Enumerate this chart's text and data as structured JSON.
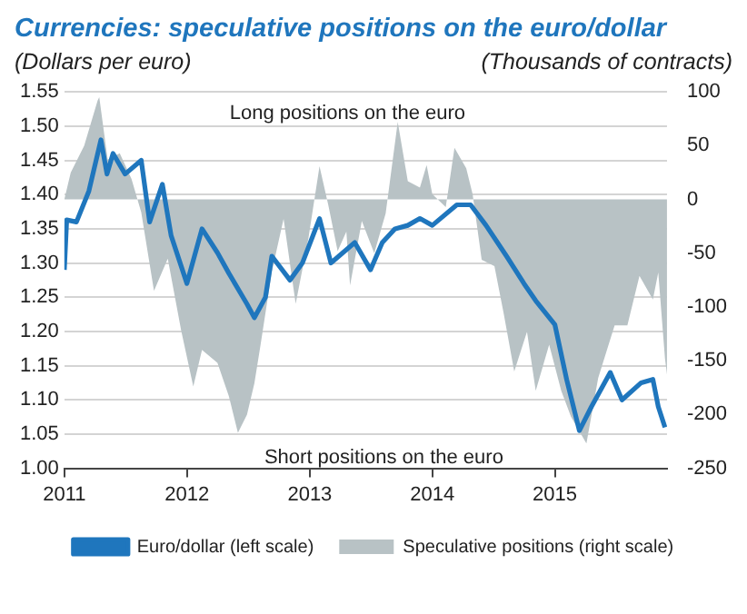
{
  "chart_data": {
    "type": "line",
    "title": "Currencies: speculative positions on the euro/dollar",
    "ylabel": "(Dollars per euro)",
    "y2label": "(Thousands of contracts)",
    "annotations": [
      "Long positions on the euro",
      "Short positions on the euro"
    ],
    "xlim": [
      "2011-01-01",
      "2015-12-01"
    ],
    "xticks": [
      {
        "value": "2011-01-01",
        "label": "2011"
      },
      {
        "value": "2012-01-01",
        "label": "2012"
      },
      {
        "value": "2013-01-01",
        "label": "2013"
      },
      {
        "value": "2014-01-01",
        "label": "2014"
      },
      {
        "value": "2015-01-01",
        "label": "2015"
      }
    ],
    "ylim": [
      1,
      1.55
    ],
    "yticks": [
      {
        "value": 1,
        "label": "1.00"
      },
      1.05,
      {
        "value": 1.1,
        "label": "1.10"
      },
      1.15,
      {
        "value": 1.2,
        "label": "1.20"
      },
      1.25,
      {
        "value": 1.3,
        "label": "1.30"
      },
      1.35,
      {
        "value": 1.4,
        "label": "1.40"
      },
      1.45,
      {
        "value": 1.5,
        "label": "1.50"
      },
      1.55
    ],
    "y2lim": [
      -250,
      100
    ],
    "y2ticks": [
      -250,
      -200,
      -150,
      -100,
      -50,
      0,
      50,
      100
    ],
    "grid": "y",
    "legend": "bottom",
    "marker": "none",
    "line_style": "solid",
    "series": [
      {
        "name": "Euro/dollar (left scale)",
        "type": "line",
        "color": "#1f76bd",
        "x": [
          "2011-01-01",
          "2011-01-08",
          "2011-02-06",
          "2011-03-15",
          "2011-04-20",
          "2011-05-08",
          "2011-05-26",
          "2011-07-01",
          "2011-08-18",
          "2011-09-12",
          "2011-10-20",
          "2011-11-15",
          "2012-01-01",
          "2012-02-15",
          "2012-04-01",
          "2012-05-05",
          "2012-06-28",
          "2012-07-20",
          "2012-08-22",
          "2012-09-10",
          "2012-11-03",
          "2012-12-10",
          "2013-01-30",
          "2013-03-05",
          "2013-05-15",
          "2013-07-01",
          "2013-08-05",
          "2013-09-12",
          "2013-10-20",
          "2013-11-25",
          "2014-01-01",
          "2014-03-15",
          "2014-04-25",
          "2014-06-10",
          "2014-08-10",
          "2014-10-01",
          "2014-11-05",
          "2015-01-01",
          "2015-02-05",
          "2015-03-15",
          "2015-04-20",
          "2015-06-15",
          "2015-07-20",
          "2015-09-15",
          "2015-10-20",
          "2015-11-05",
          "2015-11-25"
        ],
        "values": [
          1.29,
          1.363,
          1.36,
          1.405,
          1.48,
          1.43,
          1.46,
          1.43,
          1.45,
          1.36,
          1.415,
          1.34,
          1.27,
          1.35,
          1.315,
          1.285,
          1.24,
          1.22,
          1.25,
          1.31,
          1.275,
          1.3,
          1.365,
          1.3,
          1.33,
          1.29,
          1.33,
          1.35,
          1.355,
          1.365,
          1.355,
          1.385,
          1.385,
          1.355,
          1.31,
          1.27,
          1.245,
          1.21,
          1.13,
          1.055,
          1.09,
          1.14,
          1.1,
          1.125,
          1.13,
          1.09,
          1.06
        ]
      },
      {
        "name": "Speculative positions (right scale)",
        "type": "area",
        "axis": "y2",
        "color": "#b8c2c5",
        "x": [
          "2011-01-01",
          "2011-01-20",
          "2011-03-01",
          "2011-04-10",
          "2011-04-15",
          "2011-05-10",
          "2011-06-15",
          "2011-07-20",
          "2011-08-18",
          "2011-09-25",
          "2011-11-05",
          "2011-12-15",
          "2012-01-20",
          "2012-02-15",
          "2012-04-01",
          "2012-05-05",
          "2012-06-01",
          "2012-06-28",
          "2012-07-20",
          "2012-08-08",
          "2012-09-10",
          "2012-10-15",
          "2012-11-20",
          "2012-12-28",
          "2013-01-30",
          "2013-02-25",
          "2013-03-25",
          "2013-04-20",
          "2013-05-01",
          "2013-06-05",
          "2013-07-12",
          "2013-08-15",
          "2013-09-20",
          "2013-10-20",
          "2013-11-25",
          "2013-12-15",
          "2014-01-01",
          "2014-02-10",
          "2014-03-08",
          "2014-04-12",
          "2014-05-01",
          "2014-05-28",
          "2014-07-05",
          "2014-08-01",
          "2014-09-02",
          "2014-10-10",
          "2014-11-05",
          "2014-12-15",
          "2015-01-20",
          "2015-02-18",
          "2015-04-05",
          "2015-05-10",
          "2015-06-28",
          "2015-08-05",
          "2015-09-10",
          "2015-10-20",
          "2015-11-05",
          "2015-11-25",
          "2015-12-01"
        ],
        "values": [
          0,
          25,
          50,
          92,
          95,
          37,
          43,
          19,
          -12,
          -85,
          -55,
          -122,
          -174,
          -140,
          -152,
          -183,
          -217,
          -200,
          -171,
          -134,
          -67,
          -18,
          -97,
          -36,
          31,
          -5,
          -48,
          -30,
          -80,
          -20,
          -50,
          -13,
          72,
          17,
          11,
          32,
          5,
          -7,
          48,
          29,
          5,
          -56,
          -62,
          -105,
          -160,
          -123,
          -178,
          -135,
          -178,
          -202,
          -227,
          -166,
          -117,
          -117,
          -71,
          -93,
          -68,
          -148,
          -163
        ]
      }
    ]
  }
}
